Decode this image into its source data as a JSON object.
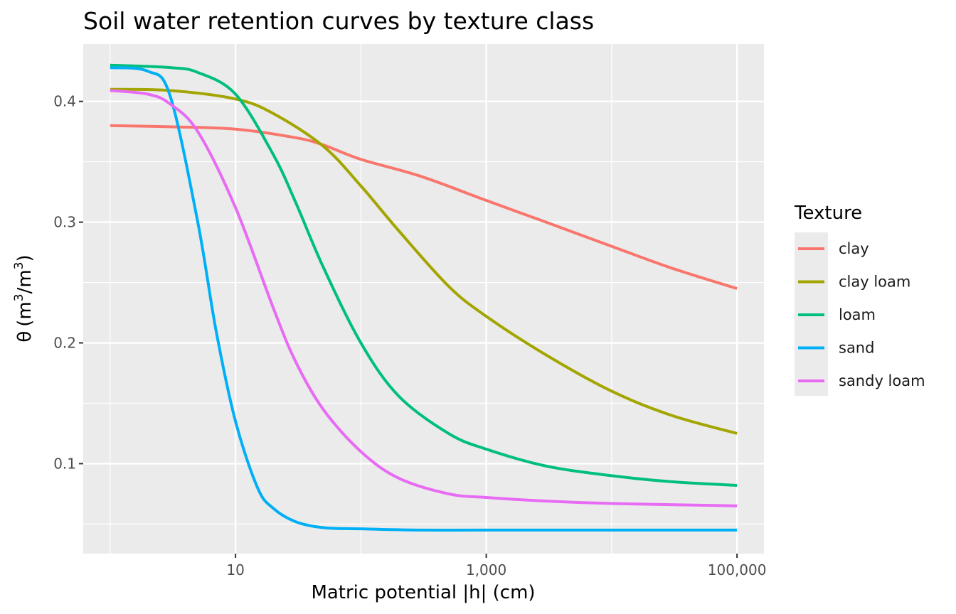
{
  "chart_data": {
    "type": "line",
    "title": "Soil water retention curves by texture class",
    "xlabel": "Matric potential |h| (cm)",
    "ylabel": {
      "symbol": "θ",
      "open": "(m",
      "sup1": "3",
      "slash": "/m",
      "sup2": "3",
      "close": ")"
    },
    "x_scale": "log10",
    "xlim": [
      0.61,
      164000
    ],
    "ylim": [
      0.0255,
      0.4475
    ],
    "x_ticks": [
      {
        "value": 10,
        "label": "10"
      },
      {
        "value": 1000,
        "label": "1,000"
      },
      {
        "value": 100000,
        "label": "100,000"
      }
    ],
    "x_minor_ticks": [
      1,
      100,
      10000
    ],
    "y_ticks": [
      {
        "value": 0.1,
        "label": "0.1"
      },
      {
        "value": 0.2,
        "label": "0.2"
      },
      {
        "value": 0.3,
        "label": "0.3"
      },
      {
        "value": 0.4,
        "label": "0.4"
      }
    ],
    "y_minor_ticks": [
      0.05,
      0.15,
      0.25,
      0.35
    ],
    "grid": true,
    "legend": {
      "title": "Texture",
      "position": "right"
    },
    "series": [
      {
        "name": "clay",
        "color": "#F8766D",
        "x": [
          1,
          3,
          10,
          30,
          50,
          100,
          300,
          1000,
          3000,
          10000,
          30000,
          100000
        ],
        "y": [
          0.38,
          0.379,
          0.377,
          0.37,
          0.364,
          0.352,
          0.338,
          0.318,
          0.3,
          0.28,
          0.262,
          0.245
        ]
      },
      {
        "name": "clay loam",
        "color": "#A3A500",
        "x": [
          1,
          3,
          10,
          20,
          50,
          100,
          200,
          500,
          1000,
          3000,
          10000,
          30000,
          100000
        ],
        "y": [
          0.41,
          0.409,
          0.402,
          0.39,
          0.363,
          0.33,
          0.293,
          0.247,
          0.222,
          0.19,
          0.16,
          0.14,
          0.125
        ]
      },
      {
        "name": "loam",
        "color": "#00BF7D",
        "x": [
          1,
          3,
          5,
          10,
          20,
          30,
          50,
          100,
          200,
          500,
          1000,
          3000,
          10000,
          30000,
          100000
        ],
        "y": [
          0.43,
          0.428,
          0.424,
          0.406,
          0.356,
          0.317,
          0.263,
          0.2,
          0.156,
          0.125,
          0.112,
          0.098,
          0.09,
          0.085,
          0.082
        ]
      },
      {
        "name": "sand",
        "color": "#00B0F6",
        "x": [
          1,
          2,
          3,
          5,
          7,
          10,
          15,
          20,
          30,
          50,
          100,
          300,
          1000,
          10000,
          100000
        ],
        "y": [
          0.428,
          0.425,
          0.405,
          0.3,
          0.21,
          0.135,
          0.08,
          0.063,
          0.052,
          0.047,
          0.046,
          0.045,
          0.045,
          0.045,
          0.045
        ]
      },
      {
        "name": "sandy loam",
        "color": "#E76BF3",
        "x": [
          1,
          2,
          3,
          5,
          10,
          20,
          30,
          50,
          100,
          200,
          500,
          1000,
          3000,
          10000,
          100000
        ],
        "y": [
          0.409,
          0.406,
          0.398,
          0.375,
          0.312,
          0.229,
          0.185,
          0.145,
          0.11,
          0.088,
          0.075,
          0.072,
          0.069,
          0.067,
          0.065
        ]
      }
    ]
  }
}
